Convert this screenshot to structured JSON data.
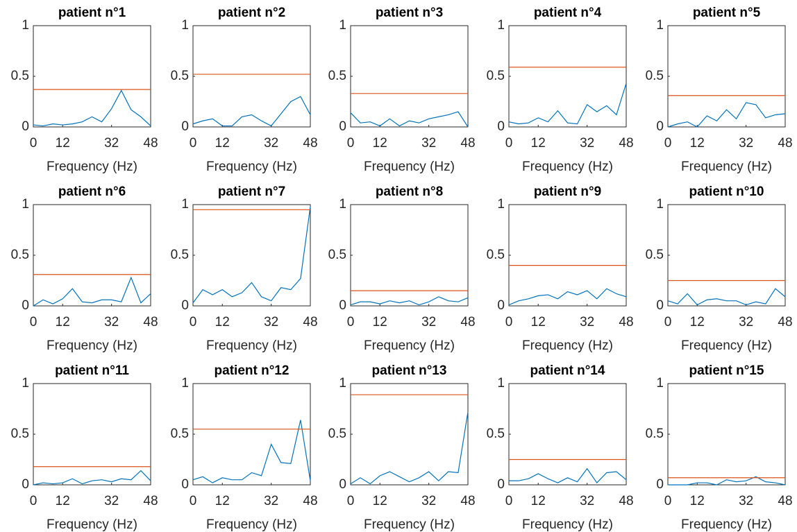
{
  "chart_data": [
    {
      "type": "line",
      "title": "patient n°1",
      "xlabel": "Frequency (Hz)",
      "x": [
        0,
        4,
        8,
        12,
        16,
        20,
        24,
        28,
        32,
        36,
        40,
        44,
        48
      ],
      "series": [
        {
          "color": "#0072bd",
          "values": [
            0.02,
            0.01,
            0.03,
            0.02,
            0.03,
            0.05,
            0.1,
            0.05,
            0.18,
            0.36,
            0.17,
            0.1,
            0.01
          ]
        }
      ],
      "hline": {
        "y": 0.37,
        "color": "#d95319"
      },
      "xlim": [
        0,
        48
      ],
      "xticks": [
        0,
        12,
        32,
        48
      ],
      "ylim": [
        0,
        1
      ],
      "yticks": [
        0,
        0.5,
        1
      ]
    },
    {
      "type": "line",
      "title": "patient n°2",
      "xlabel": "Frequency (Hz)",
      "x": [
        0,
        4,
        8,
        12,
        16,
        20,
        24,
        28,
        32,
        36,
        40,
        44,
        48
      ],
      "series": [
        {
          "color": "#0072bd",
          "values": [
            0.03,
            0.06,
            0.08,
            0.01,
            0.01,
            0.1,
            0.12,
            0.06,
            0.01,
            0.13,
            0.25,
            0.3,
            0.12
          ]
        }
      ],
      "hline": {
        "y": 0.52,
        "color": "#d95319"
      },
      "xlim": [
        0,
        48
      ],
      "xticks": [
        0,
        12,
        32,
        48
      ],
      "ylim": [
        0,
        1
      ],
      "yticks": [
        0,
        0.5,
        1
      ]
    },
    {
      "type": "line",
      "title": "patient n°3",
      "xlabel": "Frequency (Hz)",
      "x": [
        0,
        4,
        8,
        12,
        16,
        20,
        24,
        28,
        32,
        36,
        40,
        44,
        48
      ],
      "series": [
        {
          "color": "#0072bd",
          "values": [
            0.14,
            0.04,
            0.05,
            0.01,
            0.08,
            0.01,
            0.06,
            0.04,
            0.08,
            0.1,
            0.12,
            0.15,
            0.0
          ]
        }
      ],
      "hline": {
        "y": 0.33,
        "color": "#d95319"
      },
      "xlim": [
        0,
        48
      ],
      "xticks": [
        0,
        12,
        32,
        48
      ],
      "ylim": [
        0,
        1
      ],
      "yticks": [
        0,
        0.5,
        1
      ]
    },
    {
      "type": "line",
      "title": "patient n°4",
      "xlabel": "Frequency (Hz)",
      "x": [
        0,
        4,
        8,
        12,
        16,
        20,
        24,
        28,
        32,
        36,
        40,
        44,
        48
      ],
      "series": [
        {
          "color": "#0072bd",
          "values": [
            0.05,
            0.03,
            0.04,
            0.09,
            0.05,
            0.16,
            0.04,
            0.03,
            0.22,
            0.15,
            0.21,
            0.12,
            0.43
          ]
        }
      ],
      "hline": {
        "y": 0.59,
        "color": "#d95319"
      },
      "xlim": [
        0,
        48
      ],
      "xticks": [
        0,
        12,
        32,
        48
      ],
      "ylim": [
        0,
        1
      ],
      "yticks": [
        0,
        0.5,
        1
      ]
    },
    {
      "type": "line",
      "title": "patient n°5",
      "xlabel": "Frequency (Hz)",
      "x": [
        0,
        4,
        8,
        12,
        16,
        20,
        24,
        28,
        32,
        36,
        40,
        44,
        48
      ],
      "series": [
        {
          "color": "#0072bd",
          "values": [
            0.0,
            0.03,
            0.05,
            0.0,
            0.11,
            0.06,
            0.17,
            0.08,
            0.24,
            0.22,
            0.09,
            0.12,
            0.13
          ]
        }
      ],
      "hline": {
        "y": 0.31,
        "color": "#d95319"
      },
      "xlim": [
        0,
        48
      ],
      "xticks": [
        0,
        12,
        32,
        48
      ],
      "ylim": [
        0,
        1
      ],
      "yticks": [
        0,
        0.5,
        1
      ]
    },
    {
      "type": "line",
      "title": "patient n°6",
      "xlabel": "Frequency (Hz)",
      "x": [
        0,
        4,
        8,
        12,
        16,
        20,
        24,
        28,
        32,
        36,
        40,
        44,
        48
      ],
      "series": [
        {
          "color": "#0072bd",
          "values": [
            0.0,
            0.06,
            0.02,
            0.07,
            0.17,
            0.04,
            0.03,
            0.06,
            0.06,
            0.04,
            0.28,
            0.03,
            0.12
          ]
        }
      ],
      "hline": {
        "y": 0.31,
        "color": "#d95319"
      },
      "xlim": [
        0,
        48
      ],
      "xticks": [
        0,
        12,
        32,
        48
      ],
      "ylim": [
        0,
        1
      ],
      "yticks": [
        0,
        0.5,
        1
      ]
    },
    {
      "type": "line",
      "title": "patient n°7",
      "xlabel": "Frequency (Hz)",
      "x": [
        0,
        4,
        8,
        12,
        16,
        20,
        24,
        28,
        32,
        36,
        40,
        44,
        48
      ],
      "series": [
        {
          "color": "#0072bd",
          "values": [
            0.03,
            0.16,
            0.11,
            0.16,
            0.09,
            0.13,
            0.23,
            0.09,
            0.05,
            0.18,
            0.16,
            0.27,
            0.98
          ]
        }
      ],
      "hline": {
        "y": 0.95,
        "color": "#d95319"
      },
      "xlim": [
        0,
        48
      ],
      "xticks": [
        0,
        12,
        32,
        48
      ],
      "ylim": [
        0,
        1
      ],
      "yticks": [
        0,
        0.5,
        1
      ]
    },
    {
      "type": "line",
      "title": "patient n°8",
      "xlabel": "Frequency (Hz)",
      "x": [
        0,
        4,
        8,
        12,
        16,
        20,
        24,
        28,
        32,
        36,
        40,
        44,
        48
      ],
      "series": [
        {
          "color": "#0072bd",
          "values": [
            0.01,
            0.04,
            0.04,
            0.02,
            0.05,
            0.03,
            0.05,
            0.01,
            0.04,
            0.09,
            0.05,
            0.04,
            0.08
          ]
        }
      ],
      "hline": {
        "y": 0.15,
        "color": "#d95319"
      },
      "xlim": [
        0,
        48
      ],
      "xticks": [
        0,
        12,
        32,
        48
      ],
      "ylim": [
        0,
        1
      ],
      "yticks": [
        0,
        0.5,
        1
      ]
    },
    {
      "type": "line",
      "title": "patient n°9",
      "xlabel": "Frequency (Hz)",
      "x": [
        0,
        4,
        8,
        12,
        16,
        20,
        24,
        28,
        32,
        36,
        40,
        44,
        48
      ],
      "series": [
        {
          "color": "#0072bd",
          "values": [
            0.01,
            0.05,
            0.07,
            0.1,
            0.11,
            0.07,
            0.14,
            0.11,
            0.15,
            0.07,
            0.17,
            0.12,
            0.09
          ]
        }
      ],
      "hline": {
        "y": 0.4,
        "color": "#d95319"
      },
      "xlim": [
        0,
        48
      ],
      "xticks": [
        0,
        12,
        32,
        48
      ],
      "ylim": [
        0,
        1
      ],
      "yticks": [
        0,
        0.5,
        1
      ]
    },
    {
      "type": "line",
      "title": "patient n°10",
      "xlabel": "Frequency (Hz)",
      "x": [
        0,
        4,
        8,
        12,
        16,
        20,
        24,
        28,
        32,
        36,
        40,
        44,
        48
      ],
      "series": [
        {
          "color": "#0072bd",
          "values": [
            0.05,
            0.02,
            0.12,
            0.01,
            0.06,
            0.07,
            0.05,
            0.05,
            0.01,
            0.04,
            0.02,
            0.17,
            0.09
          ]
        }
      ],
      "hline": {
        "y": 0.25,
        "color": "#d95319"
      },
      "xlim": [
        0,
        48
      ],
      "xticks": [
        0,
        12,
        32,
        48
      ],
      "ylim": [
        0,
        1
      ],
      "yticks": [
        0,
        0.5,
        1
      ]
    },
    {
      "type": "line",
      "title": "patient n°11",
      "xlabel": "Frequency (Hz)",
      "x": [
        0,
        4,
        8,
        12,
        16,
        20,
        24,
        28,
        32,
        36,
        40,
        44,
        48
      ],
      "series": [
        {
          "color": "#0072bd",
          "values": [
            0.0,
            0.02,
            0.01,
            0.02,
            0.06,
            0.01,
            0.04,
            0.05,
            0.03,
            0.06,
            0.05,
            0.14,
            0.04
          ]
        }
      ],
      "hline": {
        "y": 0.18,
        "color": "#d95319"
      },
      "xlim": [
        0,
        48
      ],
      "xticks": [
        0,
        12,
        32,
        48
      ],
      "ylim": [
        0,
        1
      ],
      "yticks": [
        0,
        0.5,
        1
      ]
    },
    {
      "type": "line",
      "title": "patient n°12",
      "xlabel": "Frequency (Hz)",
      "x": [
        0,
        4,
        8,
        12,
        16,
        20,
        24,
        28,
        32,
        36,
        40,
        44,
        48
      ],
      "series": [
        {
          "color": "#0072bd",
          "values": [
            0.05,
            0.08,
            0.02,
            0.07,
            0.05,
            0.05,
            0.12,
            0.09,
            0.4,
            0.22,
            0.21,
            0.64,
            0.04
          ]
        }
      ],
      "hline": {
        "y": 0.55,
        "color": "#d95319"
      },
      "xlim": [
        0,
        48
      ],
      "xticks": [
        0,
        12,
        32,
        48
      ],
      "ylim": [
        0,
        1
      ],
      "yticks": [
        0,
        0.5,
        1
      ]
    },
    {
      "type": "line",
      "title": "patient n°13",
      "xlabel": "Frequency (Hz)",
      "x": [
        0,
        4,
        8,
        12,
        16,
        20,
        24,
        28,
        32,
        36,
        40,
        44,
        48
      ],
      "series": [
        {
          "color": "#0072bd",
          "values": [
            0.01,
            0.07,
            0.01,
            0.09,
            0.13,
            0.08,
            0.03,
            0.07,
            0.13,
            0.04,
            0.13,
            0.12,
            0.72
          ]
        }
      ],
      "hline": {
        "y": 0.89,
        "color": "#d95319"
      },
      "xlim": [
        0,
        48
      ],
      "xticks": [
        0,
        12,
        32,
        48
      ],
      "ylim": [
        0,
        1
      ],
      "yticks": [
        0,
        0.5,
        1
      ]
    },
    {
      "type": "line",
      "title": "patient n°14",
      "xlabel": "Frequency (Hz)",
      "x": [
        0,
        4,
        8,
        12,
        16,
        20,
        24,
        28,
        32,
        36,
        40,
        44,
        48
      ],
      "series": [
        {
          "color": "#0072bd",
          "values": [
            0.04,
            0.04,
            0.06,
            0.11,
            0.06,
            0.02,
            0.07,
            0.03,
            0.16,
            0.02,
            0.12,
            0.13,
            0.05
          ]
        }
      ],
      "hline": {
        "y": 0.25,
        "color": "#d95319"
      },
      "xlim": [
        0,
        48
      ],
      "xticks": [
        0,
        12,
        32,
        48
      ],
      "ylim": [
        0,
        1
      ],
      "yticks": [
        0,
        0.5,
        1
      ]
    },
    {
      "type": "line",
      "title": "patient n°15",
      "xlabel": "Frequency (Hz)",
      "x": [
        0,
        4,
        8,
        12,
        16,
        20,
        24,
        28,
        32,
        36,
        40,
        44,
        48
      ],
      "series": [
        {
          "color": "#0072bd",
          "values": [
            0.0,
            0.0,
            0.0,
            0.02,
            0.02,
            0.0,
            0.05,
            0.03,
            0.04,
            0.08,
            0.03,
            0.02,
            0.0
          ]
        }
      ],
      "hline": {
        "y": 0.07,
        "color": "#d95319"
      },
      "xlim": [
        0,
        48
      ],
      "xticks": [
        0,
        12,
        32,
        48
      ],
      "ylim": [
        0,
        1
      ],
      "yticks": [
        0,
        0.5,
        1
      ]
    }
  ]
}
